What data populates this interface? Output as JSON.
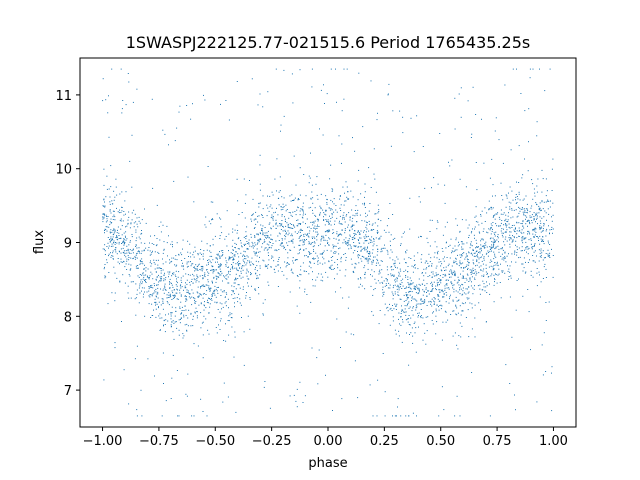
{
  "chart_data": {
    "type": "scatter",
    "title": "1SWASPJ222125.77-021515.6 Period 1765435.25s",
    "xlabel": "phase",
    "ylabel": "flux",
    "xlim": [
      -1.1,
      1.1
    ],
    "ylim": [
      6.5,
      11.5
    ],
    "xticks": [
      -1.0,
      -0.75,
      -0.5,
      -0.25,
      0.0,
      0.25,
      0.5,
      0.75,
      1.0
    ],
    "xtick_labels": [
      "−1.00",
      "−0.75",
      "−0.50",
      "−0.25",
      "0.00",
      "0.25",
      "0.50",
      "0.75",
      "1.00"
    ],
    "yticks": [
      7,
      8,
      9,
      10,
      11
    ],
    "ytick_labels": [
      "7",
      "8",
      "9",
      "10",
      "11"
    ],
    "grid": false,
    "marker_color": "#1f77b4",
    "series": [
      {
        "x": [
          -0.98,
          -0.95,
          -0.9,
          -0.85,
          -0.8,
          -0.75,
          -0.7,
          -0.65,
          -0.6,
          -0.55,
          -0.5,
          -0.45,
          -0.4,
          -0.35,
          -0.3,
          -0.25,
          -0.2,
          -0.15,
          -0.1,
          -0.05,
          0.0,
          0.05,
          0.1,
          0.15,
          0.2,
          0.25,
          0.3,
          0.35,
          0.4,
          0.45,
          0.5,
          0.55,
          0.6,
          0.65,
          0.7,
          0.75,
          0.8,
          0.85,
          0.9,
          0.95,
          0.98
        ],
        "y": [
          9.1,
          9.15,
          9.0,
          8.9,
          8.6,
          8.5,
          8.35,
          8.35,
          8.4,
          8.45,
          8.5,
          8.55,
          8.7,
          8.85,
          9.0,
          9.1,
          9.15,
          9.15,
          9.1,
          9.1,
          9.1,
          9.15,
          9.1,
          9.0,
          8.9,
          8.6,
          8.5,
          8.35,
          8.35,
          8.4,
          8.45,
          8.5,
          8.55,
          8.7,
          8.85,
          9.0,
          9.1,
          9.15,
          9.15,
          9.1,
          9.1
        ]
      }
    ]
  }
}
